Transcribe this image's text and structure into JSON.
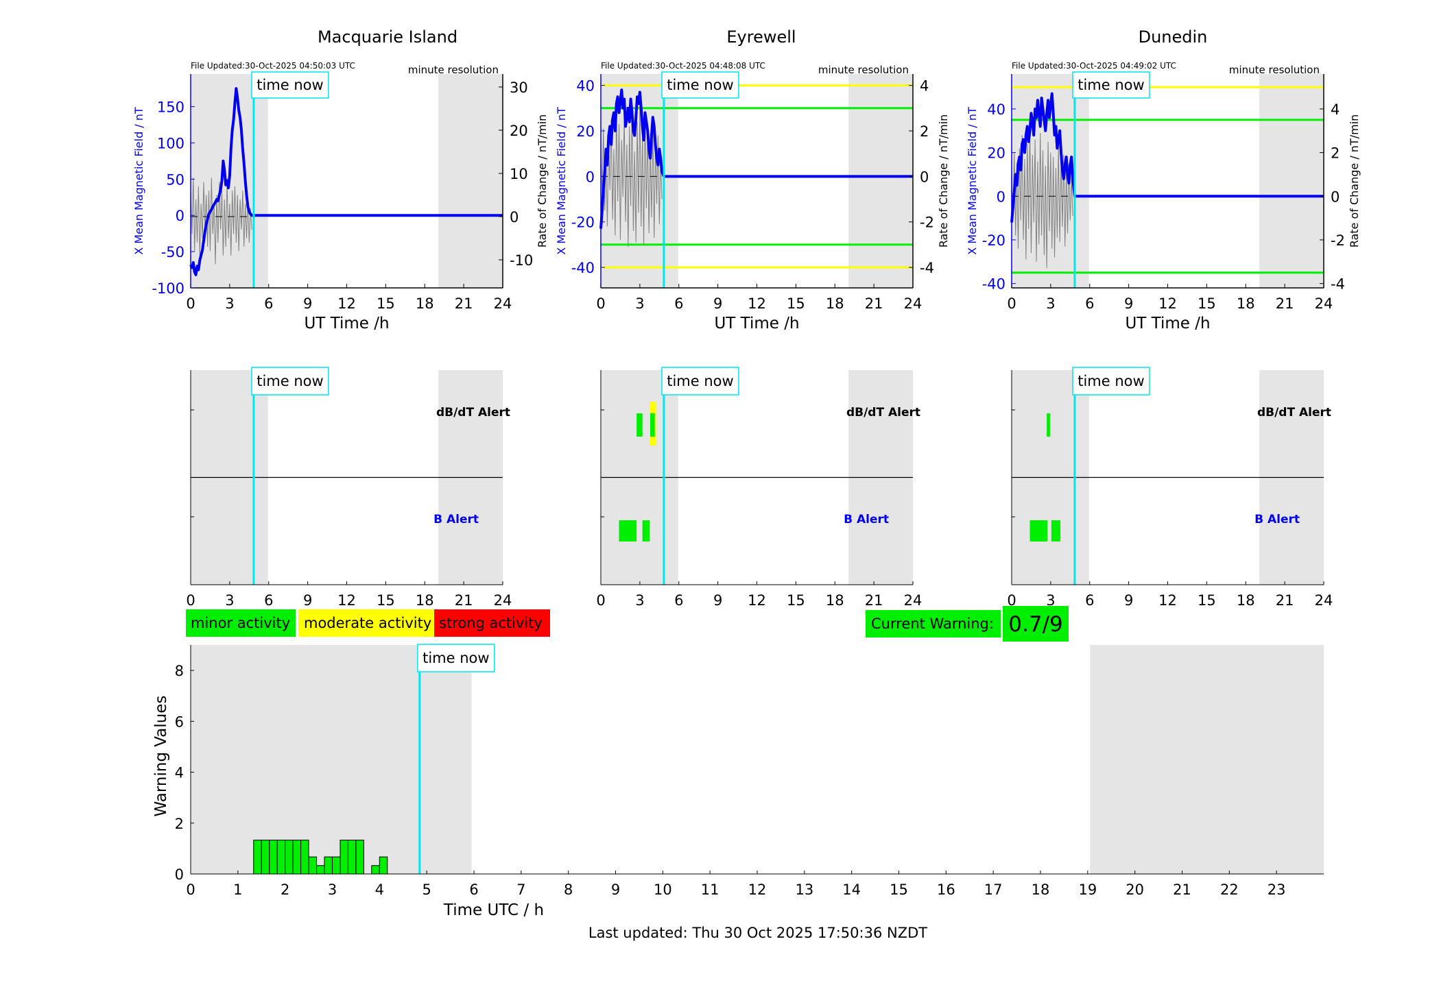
{
  "chart_data": [
    {
      "type": "line",
      "title": "Macquarie Island",
      "file_updated": "File Updated:30-Oct-2025 04:50:03 UTC",
      "resolution": "minute resolution",
      "now_label": "time now",
      "xlabel": "UT Time /h",
      "ylabel_left": "X Mean Magnetic Field / nT",
      "ylabel_right": "Rate of Change / nT/min",
      "xlim": [
        0,
        24
      ],
      "ylim_left": [
        -100,
        195
      ],
      "ylim_right": [
        -16.5,
        33
      ],
      "xticks": [
        0,
        3,
        6,
        9,
        12,
        15,
        18,
        21,
        24
      ],
      "yticks_left": [
        -100,
        -50,
        0,
        50,
        100,
        150
      ],
      "yticks_right": [
        -10,
        0,
        10,
        20,
        30
      ],
      "night_shading": [
        [
          0,
          5.95
        ],
        [
          19.05,
          24
        ]
      ],
      "now": 4.85,
      "thresholds": [],
      "series": [
        {
          "axis": "left",
          "x": [
            0,
            0.1,
            0.2,
            0.3,
            0.4,
            0.5,
            0.6,
            0.7,
            0.8,
            0.9,
            1.0,
            1.1,
            1.2,
            1.3,
            1.4,
            1.5,
            1.6,
            1.7,
            1.8,
            1.9,
            2.0,
            2.1,
            2.2,
            2.3,
            2.4,
            2.5,
            2.6,
            2.7,
            2.8,
            2.9,
            3.0,
            3.1,
            3.2,
            3.3,
            3.4,
            3.5,
            3.6,
            3.7,
            3.8,
            3.9,
            4.0,
            4.1,
            4.2,
            4.3,
            4.4,
            4.5,
            4.6,
            4.7,
            4.85,
            5.0,
            24
          ],
          "values": [
            -68,
            -72,
            -65,
            -78,
            -82,
            -70,
            -75,
            -62,
            -55,
            -48,
            -35,
            -22,
            -12,
            -5,
            2,
            5,
            8,
            12,
            15,
            18,
            22,
            20,
            28,
            35,
            48,
            75,
            62,
            42,
            48,
            38,
            55,
            92,
            118,
            132,
            155,
            175,
            162,
            145,
            135,
            118,
            92,
            72,
            48,
            28,
            12,
            5,
            2,
            0,
            0,
            0,
            0
          ]
        },
        {
          "axis": "right",
          "x": [
            0,
            0.1,
            0.2,
            0.3,
            0.4,
            0.5,
            0.6,
            0.7,
            0.8,
            0.9,
            1.0,
            1.1,
            1.2,
            1.3,
            1.4,
            1.5,
            1.6,
            1.7,
            1.8,
            1.9,
            2.0,
            2.1,
            2.2,
            2.3,
            2.4,
            2.5,
            2.6,
            2.7,
            2.8,
            2.9,
            3.0,
            3.1,
            3.2,
            3.3,
            3.4,
            3.5,
            3.6,
            3.7,
            3.8,
            3.9,
            4.0,
            4.1,
            4.2,
            4.3,
            4.4,
            4.5,
            4.6,
            4.7
          ],
          "values": [
            6,
            -4,
            9,
            -8,
            4,
            -6,
            7,
            -9,
            3,
            -5,
            8,
            -3,
            5,
            -7,
            6,
            -8,
            9,
            -4,
            3,
            -11,
            5,
            -6,
            8,
            -3,
            6,
            -9,
            4,
            -7,
            8,
            -5,
            3,
            -9,
            6,
            -4,
            7,
            -6,
            5,
            -8,
            4,
            -3,
            6,
            -7,
            3,
            -5,
            4,
            -6,
            2,
            -3
          ]
        }
      ]
    },
    {
      "type": "line",
      "title": "Eyrewell",
      "file_updated": "File Updated:30-Oct-2025 04:48:08 UTC",
      "resolution": "minute resolution",
      "now_label": "time now",
      "xlabel": "UT Time /h",
      "ylabel_left": "X Mean Magnetic Field / nT",
      "ylabel_right": "Rate of Change / nT/min",
      "xlim": [
        0,
        24
      ],
      "ylim_left": [
        -49,
        45
      ],
      "ylim_right": [
        -4.9,
        4.5
      ],
      "xticks": [
        0,
        3,
        6,
        9,
        12,
        15,
        18,
        21,
        24
      ],
      "yticks_left": [
        -40,
        -20,
        0,
        20,
        40
      ],
      "yticks_right": [
        -4,
        -2,
        0,
        2,
        4
      ],
      "night_shading": [
        [
          0,
          5.95
        ],
        [
          19.05,
          24
        ]
      ],
      "now": 4.85,
      "thresholds": [
        {
          "value": 40,
          "color": "#ffff00"
        },
        {
          "value": -40,
          "color": "#ffff00"
        },
        {
          "value": 30,
          "color": "#00ee00"
        },
        {
          "value": -30,
          "color": "#00ee00"
        }
      ],
      "series": [
        {
          "axis": "left",
          "x": [
            0,
            0.1,
            0.2,
            0.3,
            0.4,
            0.5,
            0.6,
            0.7,
            0.8,
            0.9,
            1.0,
            1.1,
            1.2,
            1.3,
            1.4,
            1.5,
            1.6,
            1.7,
            1.8,
            1.9,
            2.0,
            2.1,
            2.2,
            2.3,
            2.4,
            2.5,
            2.6,
            2.7,
            2.8,
            2.9,
            3.0,
            3.1,
            3.2,
            3.3,
            3.4,
            3.5,
            3.6,
            3.7,
            3.8,
            3.9,
            4.0,
            4.1,
            4.2,
            4.3,
            4.4,
            4.5,
            4.6,
            4.7,
            4.85,
            5.0,
            24
          ],
          "values": [
            -23,
            -15,
            -5,
            2,
            12,
            5,
            18,
            22,
            14,
            25,
            28,
            20,
            32,
            35,
            28,
            33,
            38,
            30,
            34,
            22,
            26,
            30,
            24,
            34,
            28,
            20,
            18,
            26,
            35,
            32,
            37,
            30,
            22,
            16,
            28,
            24,
            20,
            12,
            8,
            18,
            26,
            22,
            14,
            8,
            5,
            12,
            8,
            2,
            0,
            0,
            0
          ]
        },
        {
          "axis": "right",
          "x": [
            0,
            0.1,
            0.2,
            0.3,
            0.4,
            0.5,
            0.6,
            0.7,
            0.8,
            0.9,
            1.0,
            1.1,
            1.2,
            1.3,
            1.4,
            1.5,
            1.6,
            1.7,
            1.8,
            1.9,
            2.0,
            2.1,
            2.2,
            2.3,
            2.4,
            2.5,
            2.6,
            2.7,
            2.8,
            2.9,
            3.0,
            3.1,
            3.2,
            3.3,
            3.4,
            3.5,
            3.6,
            3.7,
            3.8,
            3.9,
            4.0,
            4.1,
            4.2,
            4.3,
            4.4,
            4.5,
            4.6,
            4.7
          ],
          "values": [
            1.5,
            -0.8,
            2.1,
            -1.5,
            0.9,
            -2.2,
            1.8,
            -0.6,
            2.5,
            -1.9,
            1.2,
            -2.6,
            3.0,
            -1.1,
            2.3,
            -2.8,
            1.6,
            -0.9,
            2.7,
            -2.0,
            1.4,
            -3.1,
            2.2,
            -1.3,
            2.9,
            -2.4,
            1.1,
            -2.9,
            2.4,
            -1.6,
            3.2,
            -2.2,
            1.9,
            -3.0,
            2.6,
            -1.4,
            2.0,
            -2.5,
            1.3,
            -1.8,
            2.2,
            -2.7,
            1.5,
            -1.2,
            1.8,
            -2.1,
            0.9,
            -1.0
          ]
        }
      ]
    },
    {
      "type": "line",
      "title": "Dunedin",
      "file_updated": "File Updated:30-Oct-2025 04:49:02 UTC",
      "resolution": "minute resolution",
      "now_label": "time now",
      "xlabel": "UT Time /h",
      "ylabel_left": "X Mean Magnetic Field / nT",
      "ylabel_right": "Rate of Change / nT/min",
      "xlim": [
        0,
        24
      ],
      "ylim_left": [
        -42,
        56
      ],
      "ylim_right": [
        -4.2,
        5.6
      ],
      "xticks": [
        0,
        3,
        6,
        9,
        12,
        15,
        18,
        21,
        24
      ],
      "yticks_left": [
        -40,
        -20,
        0,
        20,
        40
      ],
      "yticks_right": [
        -4,
        -2,
        0,
        2,
        4
      ],
      "night_shading": [
        [
          0,
          5.95
        ],
        [
          19.05,
          24
        ]
      ],
      "now": 4.85,
      "thresholds": [
        {
          "value": 50,
          "color": "#ffff00"
        },
        {
          "value": 35,
          "color": "#00ee00"
        },
        {
          "value": -35,
          "color": "#00ee00"
        }
      ],
      "series": [
        {
          "axis": "left",
          "x": [
            0,
            0.1,
            0.2,
            0.3,
            0.4,
            0.5,
            0.6,
            0.7,
            0.8,
            0.9,
            1.0,
            1.1,
            1.2,
            1.3,
            1.4,
            1.5,
            1.6,
            1.7,
            1.8,
            1.9,
            2.0,
            2.1,
            2.2,
            2.3,
            2.4,
            2.5,
            2.6,
            2.7,
            2.8,
            2.9,
            3.0,
            3.1,
            3.2,
            3.3,
            3.4,
            3.5,
            3.6,
            3.7,
            3.8,
            3.9,
            4.0,
            4.1,
            4.2,
            4.3,
            4.4,
            4.5,
            4.6,
            4.7,
            4.85,
            5.0,
            24
          ],
          "values": [
            -12,
            -5,
            2,
            10,
            5,
            15,
            18,
            12,
            24,
            26,
            20,
            28,
            32,
            25,
            30,
            38,
            34,
            28,
            40,
            36,
            44,
            38,
            32,
            45,
            40,
            35,
            30,
            38,
            44,
            36,
            42,
            47,
            38,
            28,
            32,
            22,
            26,
            30,
            20,
            12,
            8,
            14,
            18,
            10,
            6,
            14,
            18,
            8,
            0,
            0,
            0
          ]
        },
        {
          "axis": "right",
          "x": [
            0,
            0.1,
            0.2,
            0.3,
            0.4,
            0.5,
            0.6,
            0.7,
            0.8,
            0.9,
            1.0,
            1.1,
            1.2,
            1.3,
            1.4,
            1.5,
            1.6,
            1.7,
            1.8,
            1.9,
            2.0,
            2.1,
            2.2,
            2.3,
            2.4,
            2.5,
            2.6,
            2.7,
            2.8,
            2.9,
            3.0,
            3.1,
            3.2,
            3.3,
            3.4,
            3.5,
            3.6,
            3.7,
            3.8,
            3.9,
            4.0,
            4.1,
            4.2,
            4.3,
            4.4,
            4.5,
            4.6,
            4.7
          ],
          "values": [
            1.2,
            -0.9,
            2.0,
            -1.8,
            1.5,
            -2.4,
            2.2,
            -1.1,
            2.8,
            -2.0,
            1.7,
            -2.9,
            2.4,
            -1.5,
            3.1,
            -2.6,
            1.9,
            -1.2,
            2.6,
            -3.0,
            1.6,
            -2.2,
            2.9,
            -1.8,
            2.1,
            -2.7,
            1.4,
            -3.3,
            2.5,
            -1.6,
            2.0,
            -2.4,
            1.8,
            -2.8,
            1.3,
            -1.9,
            2.3,
            -2.1,
            1.6,
            -1.4,
            1.9,
            -2.3,
            1.2,
            -1.7,
            1.5,
            -1.1,
            0.8,
            -0.9
          ]
        }
      ]
    },
    {
      "type": "bar",
      "subtype": "alert-timeline",
      "station": "Macquarie Island",
      "now_label": "time now",
      "dbdt_label": "dB/dT Alert",
      "b_label": "B Alert",
      "xlim": [
        0,
        24
      ],
      "xticks": [
        0,
        3,
        6,
        9,
        12,
        15,
        18,
        21,
        24
      ],
      "night_shading": [
        [
          0,
          5.95
        ],
        [
          19.05,
          24
        ]
      ],
      "now": 4.85,
      "dbdt_alerts": [],
      "b_alerts": []
    },
    {
      "type": "bar",
      "subtype": "alert-timeline",
      "station": "Eyrewell",
      "now_label": "time now",
      "dbdt_label": "dB/dT Alert",
      "b_label": "B Alert",
      "xlim": [
        0,
        24
      ],
      "xticks": [
        0,
        3,
        6,
        9,
        12,
        15,
        18,
        21,
        24
      ],
      "night_shading": [
        [
          0,
          5.95
        ],
        [
          19.05,
          24
        ]
      ],
      "now": 4.85,
      "dbdt_alerts": [
        {
          "start": 2.75,
          "end": 3.2,
          "color": "#00ee00"
        },
        {
          "start": 3.75,
          "end": 4.25,
          "color": "#ffff00",
          "tall": true
        },
        {
          "start": 3.8,
          "end": 4.15,
          "color": "#00ee00"
        }
      ],
      "b_alerts": [
        {
          "start": 1.4,
          "end": 2.75,
          "color": "#00ee00"
        },
        {
          "start": 3.2,
          "end": 3.75,
          "color": "#00ee00"
        }
      ]
    },
    {
      "type": "bar",
      "subtype": "alert-timeline",
      "station": "Dunedin",
      "now_label": "time now",
      "dbdt_label": "dB/dT Alert",
      "b_label": "B Alert",
      "xlim": [
        0,
        24
      ],
      "xticks": [
        0,
        3,
        6,
        9,
        12,
        15,
        18,
        21,
        24
      ],
      "night_shading": [
        [
          0,
          5.95
        ],
        [
          19.05,
          24
        ]
      ],
      "now": 4.85,
      "dbdt_alerts": [
        {
          "start": 2.7,
          "end": 2.95,
          "color": "#00ee00"
        }
      ],
      "b_alerts": [
        {
          "start": 1.4,
          "end": 2.75,
          "color": "#00ee00"
        },
        {
          "start": 3.05,
          "end": 3.75,
          "color": "#00ee00"
        }
      ]
    },
    {
      "type": "bar",
      "subtype": "warning-values",
      "now_label": "time now",
      "xlabel": "Time UTC / h",
      "ylabel": "Warning Values",
      "xlim": [
        0,
        24
      ],
      "ylim": [
        0,
        9
      ],
      "xticks": [
        0,
        1,
        2,
        3,
        4,
        5,
        6,
        7,
        8,
        9,
        10,
        11,
        12,
        13,
        14,
        15,
        16,
        17,
        18,
        19,
        20,
        21,
        22,
        23
      ],
      "yticks": [
        0,
        2,
        4,
        6,
        8
      ],
      "night_shading": [
        [
          0,
          5.95
        ],
        [
          19.05,
          24
        ]
      ],
      "now": 4.85,
      "bin_width": 0.1667,
      "x": [
        1.333,
        1.5,
        1.667,
        1.833,
        2.0,
        2.167,
        2.333,
        2.5,
        2.667,
        2.833,
        3.0,
        3.167,
        3.333,
        3.5,
        3.833,
        4.0
      ],
      "values": [
        1.33,
        1.33,
        1.33,
        1.33,
        1.33,
        1.33,
        1.33,
        0.67,
        0.33,
        0.67,
        0.67,
        1.33,
        1.33,
        1.33,
        0.33,
        0.67
      ]
    }
  ],
  "legend": {
    "minor": "minor activity",
    "moderate": "moderate activity",
    "strong": "strong activity",
    "minor_color": "#00ee00",
    "moderate_color": "#ffff00",
    "strong_color": "#ff0000"
  },
  "current_warning": {
    "label": "Current Warning:",
    "value": "0.7/9",
    "color": "#00ee00"
  },
  "last_updated": "Last updated: Thu 30 Oct 2025 17:50:36 NZDT",
  "colors": {
    "field_line": "#0000ee",
    "rate_line": "#808080",
    "now_line": "#00e5ee",
    "night": "#e5e5e5",
    "b_alert_label": "#0000ee"
  }
}
